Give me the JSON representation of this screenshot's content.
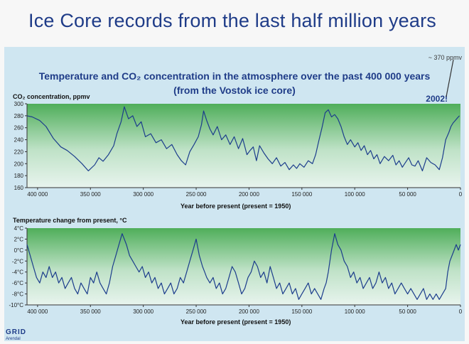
{
  "slide": {
    "title": "Ice Core records from the last half million years"
  },
  "notes": {
    "ppmv": "~ 370 ppmv",
    "year": "2002!"
  },
  "logo": {
    "text": "GRID",
    "sub": "Arendal"
  },
  "chart_data": [
    {
      "type": "line",
      "title": "Temperature and CO₂ concentration in the atmosphere over the past 400 000 years",
      "subtitle": "(from the Vostok ice core)",
      "ylabel": "CO₂ concentration, ppmv",
      "xlabel": "Year before present (present = 1950)",
      "xlim": [
        410000,
        0
      ],
      "ylim": [
        160,
        300
      ],
      "yticks": [
        160,
        180,
        200,
        220,
        240,
        260,
        280,
        300
      ],
      "ytick_labels": [
        "160",
        "180",
        "200",
        "220",
        "240",
        "260",
        "280",
        "300"
      ],
      "xticks": [
        400000,
        350000,
        300000,
        250000,
        200000,
        150000,
        100000,
        50000,
        0
      ],
      "xtick_labels": [
        "400 000",
        "350 000",
        "300 000",
        "250 000",
        "200 000",
        "150 000",
        "100 000",
        "50 000",
        "0"
      ],
      "series": [
        {
          "x": [
            410000,
            405000,
            398000,
            392000,
            385000,
            378000,
            372000,
            365000,
            358000,
            352000,
            346000,
            342000,
            338000,
            333000,
            328000,
            325000,
            321000,
            318000,
            314000,
            310000,
            306000,
            302000,
            298000,
            293000,
            288000,
            283000,
            278000,
            273000,
            268000,
            264000,
            260000,
            256000,
            252000,
            248000,
            245000,
            243000,
            240000,
            237000,
            234000,
            230000,
            226000,
            222000,
            218000,
            214000,
            210000,
            206000,
            202000,
            199000,
            196000,
            193000,
            190000,
            186000,
            182000,
            178000,
            174000,
            170000,
            166000,
            162000,
            158000,
            155000,
            152000,
            148000,
            144000,
            140000,
            137000,
            134000,
            131000,
            128000,
            125000,
            122000,
            119000,
            116000,
            113000,
            110000,
            107000,
            104000,
            100000,
            97000,
            94000,
            91000,
            88000,
            85000,
            82000,
            79000,
            76000,
            72000,
            68000,
            64000,
            61000,
            58000,
            55000,
            52000,
            49000,
            46000,
            43000,
            40000,
            36000,
            32000,
            28000,
            24000,
            20000,
            17000,
            14000,
            11000,
            9000,
            7000,
            5000,
            3000,
            1000
          ],
          "y": [
            280,
            278,
            272,
            262,
            242,
            228,
            222,
            212,
            200,
            188,
            198,
            210,
            204,
            215,
            230,
            250,
            270,
            295,
            275,
            280,
            262,
            270,
            245,
            250,
            235,
            240,
            225,
            232,
            215,
            205,
            198,
            220,
            232,
            245,
            265,
            288,
            272,
            258,
            248,
            262,
            240,
            248,
            232,
            245,
            225,
            242,
            215,
            222,
            228,
            205,
            230,
            218,
            208,
            200,
            210,
            196,
            202,
            190,
            198,
            192,
            200,
            194,
            205,
            200,
            215,
            238,
            260,
            285,
            290,
            278,
            282,
            275,
            262,
            245,
            232,
            240,
            228,
            235,
            222,
            230,
            215,
            222,
            208,
            215,
            200,
            212,
            205,
            214,
            198,
            205,
            194,
            202,
            210,
            198,
            196,
            205,
            188,
            210,
            202,
            198,
            190,
            210,
            240,
            252,
            262,
            268,
            272,
            276,
            280
          ]
        }
      ]
    },
    {
      "type": "line",
      "ylabel": "Temperature change from present, °C",
      "xlabel": "Year before present (present = 1950)",
      "xlim": [
        410000,
        0
      ],
      "ylim": [
        -10,
        4
      ],
      "yticks": [
        4,
        2,
        0,
        -2,
        -4,
        -6,
        -8,
        -10
      ],
      "ytick_labels": [
        "4°C",
        "2°C",
        "0°C",
        "-2°C",
        "-4°C",
        "-6°C",
        "-8°C",
        "-10°C"
      ],
      "xticks": [
        400000,
        350000,
        300000,
        250000,
        200000,
        150000,
        100000,
        50000,
        0
      ],
      "xtick_labels": [
        "400 000",
        "350 000",
        "300 000",
        "250 000",
        "200 000",
        "150 000",
        "100 000",
        "50 000",
        "0"
      ],
      "series": [
        {
          "x": [
            410000,
            407000,
            404000,
            401000,
            398000,
            395000,
            392000,
            389000,
            386000,
            383000,
            380000,
            377000,
            374000,
            371000,
            368000,
            365000,
            362000,
            359000,
            356000,
            353000,
            350000,
            347000,
            344000,
            341000,
            338000,
            335000,
            332000,
            329000,
            326000,
            323000,
            320000,
            318000,
            316000,
            313000,
            310000,
            307000,
            304000,
            301000,
            298000,
            295000,
            292000,
            289000,
            286000,
            283000,
            280000,
            277000,
            274000,
            271000,
            268000,
            265000,
            262000,
            259000,
            256000,
            253000,
            250000,
            247000,
            244000,
            242000,
            240000,
            237000,
            234000,
            231000,
            228000,
            225000,
            222000,
            219000,
            216000,
            213000,
            210000,
            207000,
            204000,
            201000,
            198000,
            195000,
            192000,
            189000,
            186000,
            183000,
            180000,
            177000,
            174000,
            171000,
            168000,
            165000,
            162000,
            159000,
            156000,
            153000,
            150000,
            147000,
            144000,
            141000,
            138000,
            135000,
            132000,
            129000,
            127000,
            125000,
            122000,
            119000,
            116000,
            113000,
            110000,
            107000,
            104000,
            101000,
            98000,
            95000,
            92000,
            89000,
            86000,
            83000,
            80000,
            77000,
            74000,
            71000,
            68000,
            65000,
            62000,
            59000,
            56000,
            53000,
            50000,
            47000,
            44000,
            41000,
            38000,
            35000,
            32000,
            29000,
            26000,
            23000,
            20000,
            17000,
            14000,
            12000,
            10000,
            8000,
            6000,
            4000,
            2000,
            0
          ],
          "y": [
            1,
            -1,
            -3,
            -5,
            -6,
            -4,
            -5,
            -3,
            -5,
            -4,
            -6,
            -5,
            -7,
            -6,
            -5,
            -7,
            -8,
            -6,
            -7,
            -8,
            -5,
            -6,
            -4,
            -6,
            -7,
            -8,
            -6,
            -3,
            -1,
            1,
            3,
            2,
            1,
            -1,
            -2,
            -3,
            -4,
            -3,
            -5,
            -4,
            -6,
            -5,
            -7,
            -6,
            -8,
            -7,
            -6,
            -8,
            -7,
            -5,
            -6,
            -4,
            -2,
            0,
            2,
            -1,
            -3,
            -4,
            -5,
            -6,
            -5,
            -7,
            -6,
            -8,
            -7,
            -5,
            -3,
            -4,
            -6,
            -8,
            -7,
            -5,
            -4,
            -2,
            -3,
            -5,
            -4,
            -6,
            -3,
            -5,
            -7,
            -6,
            -8,
            -7,
            -6,
            -8,
            -7,
            -9,
            -8,
            -7,
            -6,
            -8,
            -7,
            -8,
            -9,
            -7,
            -6,
            -4,
            0,
            3,
            1,
            0,
            -2,
            -3,
            -5,
            -4,
            -6,
            -5,
            -7,
            -6,
            -5,
            -7,
            -6,
            -4,
            -6,
            -5,
            -7,
            -6,
            -8,
            -7,
            -6,
            -7,
            -8,
            -7,
            -8,
            -9,
            -8,
            -7,
            -9,
            -8,
            -9,
            -8,
            -9,
            -8,
            -7,
            -4,
            -2,
            -1,
            0,
            1,
            0,
            1
          ]
        }
      ]
    }
  ]
}
